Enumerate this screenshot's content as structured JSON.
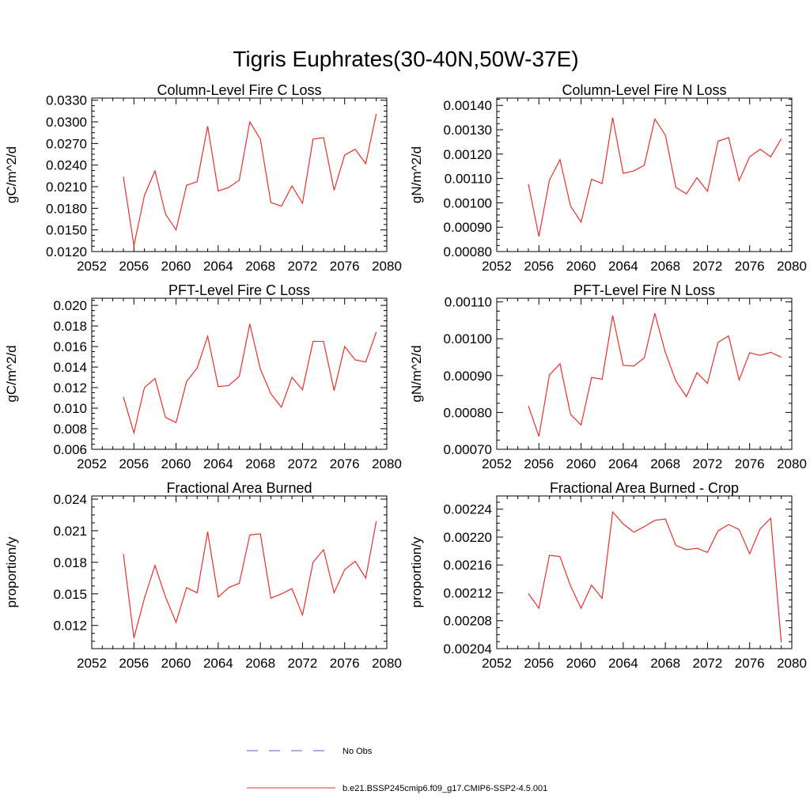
{
  "figure": {
    "title": "Tigris Euphrates(30-40N,50W-37E)"
  },
  "legend": {
    "items": [
      {
        "label": "No Obs",
        "color": "#5b5bd6",
        "dash": true
      },
      {
        "label": "b.e21.BSSP245cmip6.f09_g17.CMIP6-SSP2-4.5.001",
        "color": "#e8302a",
        "dash": false
      }
    ]
  },
  "chart_data": [
    {
      "type": "line",
      "title": "Column-Level Fire C Loss",
      "ylabel": "gC/m^2/d",
      "xlim": [
        2052,
        2080
      ],
      "xticks": [
        "2052",
        "2056",
        "2060",
        "2064",
        "2068",
        "2072",
        "2076",
        "2080"
      ],
      "ylim": [
        0.012,
        0.0333
      ],
      "yticks": [
        "0.0120",
        "0.0150",
        "0.0180",
        "0.0210",
        "0.0240",
        "0.0270",
        "0.0300",
        "0.0330"
      ],
      "series": [
        {
          "color": "#e8302a",
          "x": [
            2055,
            2056,
            2057,
            2058,
            2059,
            2060,
            2061,
            2062,
            2063,
            2064,
            2065,
            2066,
            2067,
            2068,
            2069,
            2070,
            2071,
            2072,
            2073,
            2074,
            2075,
            2076,
            2077,
            2078,
            2079
          ],
          "values": [
            0.0224,
            0.0128,
            0.0198,
            0.0232,
            0.0172,
            0.015,
            0.0212,
            0.0217,
            0.0294,
            0.0204,
            0.0209,
            0.0219,
            0.03,
            0.0276,
            0.0188,
            0.0183,
            0.0211,
            0.0187,
            0.0276,
            0.0278,
            0.0205,
            0.0254,
            0.0262,
            0.0242,
            0.0311
          ]
        }
      ]
    },
    {
      "type": "line",
      "title": "Column-Level Fire N Loss",
      "ylabel": "gN/m^2/d",
      "xlim": [
        2052,
        2080
      ],
      "xticks": [
        "2052",
        "2056",
        "2060",
        "2064",
        "2068",
        "2072",
        "2076",
        "2080"
      ],
      "ylim": [
        0.0008,
        0.00143
      ],
      "yticks": [
        "0.00080",
        "0.00090",
        "0.00100",
        "0.00110",
        "0.00120",
        "0.00130",
        "0.00140"
      ],
      "series": [
        {
          "color": "#e8302a",
          "x": [
            2055,
            2056,
            2057,
            2058,
            2059,
            2060,
            2061,
            2062,
            2063,
            2064,
            2065,
            2066,
            2067,
            2068,
            2069,
            2070,
            2071,
            2072,
            2073,
            2074,
            2075,
            2076,
            2077,
            2078,
            2079
          ],
          "values": [
            0.001077,
            0.000862,
            0.001093,
            0.001177,
            0.000987,
            0.000921,
            0.001097,
            0.001079,
            0.00135,
            0.001121,
            0.001131,
            0.001154,
            0.001344,
            0.001278,
            0.001063,
            0.001037,
            0.001103,
            0.001047,
            0.001253,
            0.001268,
            0.001091,
            0.001189,
            0.00122,
            0.001189,
            0.001263
          ]
        }
      ]
    },
    {
      "type": "line",
      "title": "PFT-Level Fire C Loss",
      "ylabel": "gC/m^2/d",
      "xlim": [
        2052,
        2080
      ],
      "xticks": [
        "2052",
        "2056",
        "2060",
        "2064",
        "2068",
        "2072",
        "2076",
        "2080"
      ],
      "ylim": [
        0.006,
        0.0207
      ],
      "yticks": [
        "0.006",
        "0.008",
        "0.010",
        "0.012",
        "0.014",
        "0.016",
        "0.018",
        "0.020"
      ],
      "series": [
        {
          "color": "#e8302a",
          "x": [
            2055,
            2056,
            2057,
            2058,
            2059,
            2060,
            2061,
            2062,
            2063,
            2064,
            2065,
            2066,
            2067,
            2068,
            2069,
            2070,
            2071,
            2072,
            2073,
            2074,
            2075,
            2076,
            2077,
            2078,
            2079
          ],
          "values": [
            0.0111,
            0.0076,
            0.012,
            0.0129,
            0.0091,
            0.0086,
            0.0126,
            0.0139,
            0.017,
            0.0121,
            0.0122,
            0.0131,
            0.0182,
            0.0138,
            0.0114,
            0.0101,
            0.013,
            0.0118,
            0.0165,
            0.0165,
            0.0117,
            0.016,
            0.0147,
            0.0145,
            0.0174
          ]
        }
      ]
    },
    {
      "type": "line",
      "title": "PFT-Level Fire N Loss",
      "ylabel": "gN/m^2/d",
      "xlim": [
        2052,
        2080
      ],
      "xticks": [
        "2052",
        "2056",
        "2060",
        "2064",
        "2068",
        "2072",
        "2076",
        "2080"
      ],
      "ylim": [
        0.0007,
        0.00111
      ],
      "yticks": [
        "0.00070",
        "0.00080",
        "0.00090",
        "0.00100",
        "0.00110"
      ],
      "series": [
        {
          "color": "#e8302a",
          "x": [
            2055,
            2056,
            2057,
            2058,
            2059,
            2060,
            2061,
            2062,
            2063,
            2064,
            2065,
            2066,
            2067,
            2068,
            2069,
            2070,
            2071,
            2072,
            2073,
            2074,
            2075,
            2076,
            2077,
            2078,
            2079
          ],
          "values": [
            0.000818,
            0.000735,
            0.000902,
            0.000932,
            0.000795,
            0.000766,
            0.000895,
            0.00089,
            0.001063,
            0.000928,
            0.000926,
            0.000948,
            0.001069,
            0.000963,
            0.000885,
            0.000843,
            0.000908,
            0.000879,
            0.00099,
            0.001008,
            0.000888,
            0.000962,
            0.000955,
            0.000963,
            0.00095
          ]
        }
      ]
    },
    {
      "type": "line",
      "title": "Fractional Area Burned",
      "ylabel": "proportion/y",
      "xlim": [
        2052,
        2080
      ],
      "xticks": [
        "2052",
        "2056",
        "2060",
        "2064",
        "2068",
        "2072",
        "2076",
        "2080"
      ],
      "ylim": [
        0.0098,
        0.0243
      ],
      "yticks": [
        "0.012",
        "0.015",
        "0.018",
        "0.021",
        "0.024"
      ],
      "series": [
        {
          "color": "#e8302a",
          "x": [
            2055,
            2056,
            2057,
            2058,
            2059,
            2060,
            2061,
            2062,
            2063,
            2064,
            2065,
            2066,
            2067,
            2068,
            2069,
            2070,
            2071,
            2072,
            2073,
            2074,
            2075,
            2076,
            2077,
            2078,
            2079
          ],
          "values": [
            0.0188,
            0.0108,
            0.0146,
            0.0177,
            0.0147,
            0.0123,
            0.0156,
            0.0151,
            0.0209,
            0.0147,
            0.0156,
            0.016,
            0.0206,
            0.0207,
            0.0146,
            0.015,
            0.0155,
            0.013,
            0.018,
            0.0192,
            0.0151,
            0.0173,
            0.0181,
            0.0165,
            0.0219
          ]
        }
      ]
    },
    {
      "type": "line",
      "title": "Fractional Area Burned - Crop",
      "ylabel": "proportion/y",
      "xlim": [
        2052,
        2080
      ],
      "xticks": [
        "2052",
        "2056",
        "2060",
        "2064",
        "2068",
        "2072",
        "2076",
        "2080"
      ],
      "ylim": [
        0.00204,
        0.002259
      ],
      "yticks": [
        "0.00204",
        "0.00208",
        "0.00212",
        "0.00216",
        "0.00220",
        "0.00224"
      ],
      "series": [
        {
          "color": "#e8302a",
          "x": [
            2055,
            2056,
            2057,
            2058,
            2059,
            2060,
            2061,
            2062,
            2063,
            2064,
            2065,
            2066,
            2067,
            2068,
            2069,
            2070,
            2071,
            2072,
            2073,
            2074,
            2075,
            2076,
            2077,
            2078,
            2079
          ],
          "values": [
            0.002119,
            0.002098,
            0.002174,
            0.002172,
            0.00213,
            0.002098,
            0.002131,
            0.002112,
            0.002236,
            0.002219,
            0.002207,
            0.002215,
            0.002224,
            0.002226,
            0.002188,
            0.002182,
            0.002184,
            0.002178,
            0.002209,
            0.002218,
            0.002211,
            0.002176,
            0.002212,
            0.002227,
            0.002049
          ]
        }
      ]
    }
  ]
}
